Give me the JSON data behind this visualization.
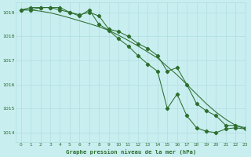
{
  "bg_color": "#c8eef0",
  "line_color": "#2d6e2d",
  "grid_color": "#b0dde0",
  "title": "Graphe pression niveau de la mer (hPa)",
  "xlim": [
    -0.5,
    23
  ],
  "ylim": [
    1013.6,
    1019.4
  ],
  "yticks": [
    1014,
    1015,
    1016,
    1017,
    1018,
    1019
  ],
  "xticks": [
    0,
    1,
    2,
    3,
    4,
    5,
    6,
    7,
    8,
    9,
    10,
    11,
    12,
    13,
    14,
    15,
    16,
    17,
    18,
    19,
    20,
    21,
    22,
    23
  ],
  "hours": [
    0,
    1,
    2,
    3,
    4,
    5,
    6,
    7,
    8,
    9,
    10,
    11,
    12,
    13,
    14,
    15,
    16,
    17,
    18,
    19,
    20,
    21,
    22,
    23
  ],
  "pressure1": [
    1019.1,
    1019.1,
    1019.2,
    1019.2,
    1019.1,
    1019.0,
    1018.9,
    1019.0,
    1018.85,
    1018.3,
    1018.2,
    1018.0,
    1017.7,
    1017.5,
    1017.2,
    1016.55,
    1016.7,
    1016.0,
    1015.2,
    1014.9,
    1014.7,
    1014.3,
    1014.3,
    1014.2
  ],
  "pressure2": [
    1019.1,
    1019.2,
    1019.2,
    1019.2,
    1019.2,
    1019.0,
    1018.85,
    1019.1,
    1018.5,
    1018.25,
    1017.9,
    1017.6,
    1017.2,
    1016.85,
    1016.55,
    1015.0,
    1015.6,
    1014.7,
    1014.2,
    1014.05,
    1014.0,
    1014.15,
    1014.2,
    1014.15
  ],
  "pressure3": [
    1019.1,
    1019.1,
    1019.05,
    1018.98,
    1018.88,
    1018.77,
    1018.65,
    1018.53,
    1018.4,
    1018.25,
    1018.05,
    1017.83,
    1017.6,
    1017.35,
    1017.1,
    1016.75,
    1016.4,
    1016.0,
    1015.6,
    1015.2,
    1014.85,
    1014.55,
    1014.3,
    1014.15
  ]
}
